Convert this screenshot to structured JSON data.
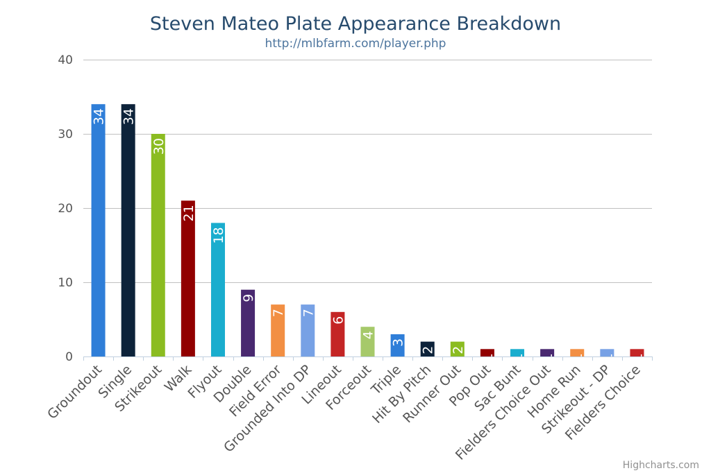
{
  "chart_data": {
    "type": "bar",
    "title": "Steven Mateo Plate Appearance Breakdown",
    "subtitle": "http://mlbfarm.com/player.php",
    "categories": [
      "Groundout",
      "Single",
      "Strikeout",
      "Walk",
      "Flyout",
      "Double",
      "Field Error",
      "Grounded Into DP",
      "Lineout",
      "Forceout",
      "Triple",
      "Hit By Pitch",
      "Runner Out",
      "Pop Out",
      "Sac Bunt",
      "Fielders Choice Out",
      "Home Run",
      "Strikeout - DP",
      "Fielders Choice"
    ],
    "values": [
      34,
      34,
      30,
      21,
      18,
      9,
      7,
      7,
      6,
      4,
      3,
      2,
      2,
      1,
      1,
      1,
      1,
      1,
      1
    ],
    "colors": [
      "#2f7ed8",
      "#0d233a",
      "#8bbc21",
      "#910000",
      "#1aadce",
      "#492970",
      "#f28f43",
      "#77a1e5",
      "#c42525",
      "#a6c96a",
      "#2f7ed8",
      "#0d233a",
      "#8bbc21",
      "#910000",
      "#1aadce",
      "#492970",
      "#f28f43",
      "#77a1e5",
      "#c42525"
    ],
    "yticks": [
      0,
      10,
      20,
      30,
      40
    ],
    "ylim": [
      0,
      40
    ],
    "grid": true,
    "legend": "none",
    "data_labels": "inside rotated"
  },
  "credits": "Highcharts.com"
}
